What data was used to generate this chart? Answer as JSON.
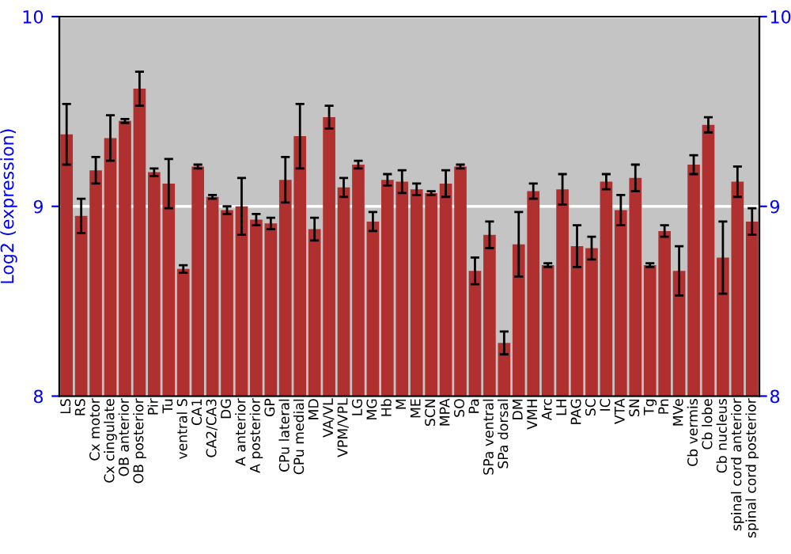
{
  "chart_data": {
    "type": "bar",
    "ylabel": "Log2 (expression)",
    "categories": [
      "LS",
      "RS",
      "Cx motor",
      "Cx cingulate",
      "OB anterior",
      "OB posterior",
      "Pir",
      "Tu",
      "ventral S",
      "CA1",
      "CA2/CA3",
      "DG",
      "A anterior",
      "A posterior",
      "GP",
      "CPu lateral",
      "CPu medial",
      "MD",
      "VA/VL",
      "VPM/VPL",
      "LG",
      "MG",
      "Hb",
      "M",
      "ME",
      "SCN",
      "MPA",
      "SO",
      "Pa",
      "SPa ventral",
      "SPa dorsal",
      "DM",
      "VMH",
      "Arc",
      "LH",
      "PAG",
      "SC",
      "IC",
      "VTA",
      "SN",
      "Tg",
      "Pn",
      "MVe",
      "Cb vermis",
      "Cb lobe",
      "Cb nucleus",
      "spinal cord anterior",
      "spinal cord posterior"
    ],
    "values": [
      9.38,
      8.95,
      9.19,
      9.36,
      9.45,
      9.62,
      9.18,
      9.12,
      8.67,
      9.21,
      9.05,
      8.98,
      9.0,
      8.93,
      8.91,
      9.14,
      9.37,
      8.88,
      9.47,
      9.1,
      9.22,
      8.92,
      9.14,
      9.13,
      9.09,
      9.07,
      9.12,
      9.21,
      8.66,
      8.85,
      8.28,
      8.8,
      9.08,
      8.69,
      9.09,
      8.79,
      8.78,
      9.13,
      8.98,
      9.15,
      8.69,
      8.87,
      8.66,
      9.22,
      9.43,
      8.73,
      9.13,
      8.92
    ],
    "errors": [
      0.16,
      0.09,
      0.07,
      0.12,
      0.01,
      0.09,
      0.02,
      0.13,
      0.02,
      0.01,
      0.01,
      0.02,
      0.15,
      0.03,
      0.03,
      0.12,
      0.17,
      0.06,
      0.06,
      0.05,
      0.02,
      0.05,
      0.03,
      0.06,
      0.03,
      0.01,
      0.07,
      0.01,
      0.07,
      0.07,
      0.06,
      0.17,
      0.04,
      0.01,
      0.08,
      0.11,
      0.06,
      0.04,
      0.08,
      0.07,
      0.01,
      0.03,
      0.13,
      0.05,
      0.04,
      0.19,
      0.08,
      0.07
    ],
    "color": "#b03030",
    "ylim": [
      8,
      10
    ],
    "yticks": [
      8,
      9,
      10
    ],
    "y2lim": [
      8,
      10
    ],
    "y2ticks": [
      8,
      9,
      10
    ],
    "grid": "y"
  }
}
